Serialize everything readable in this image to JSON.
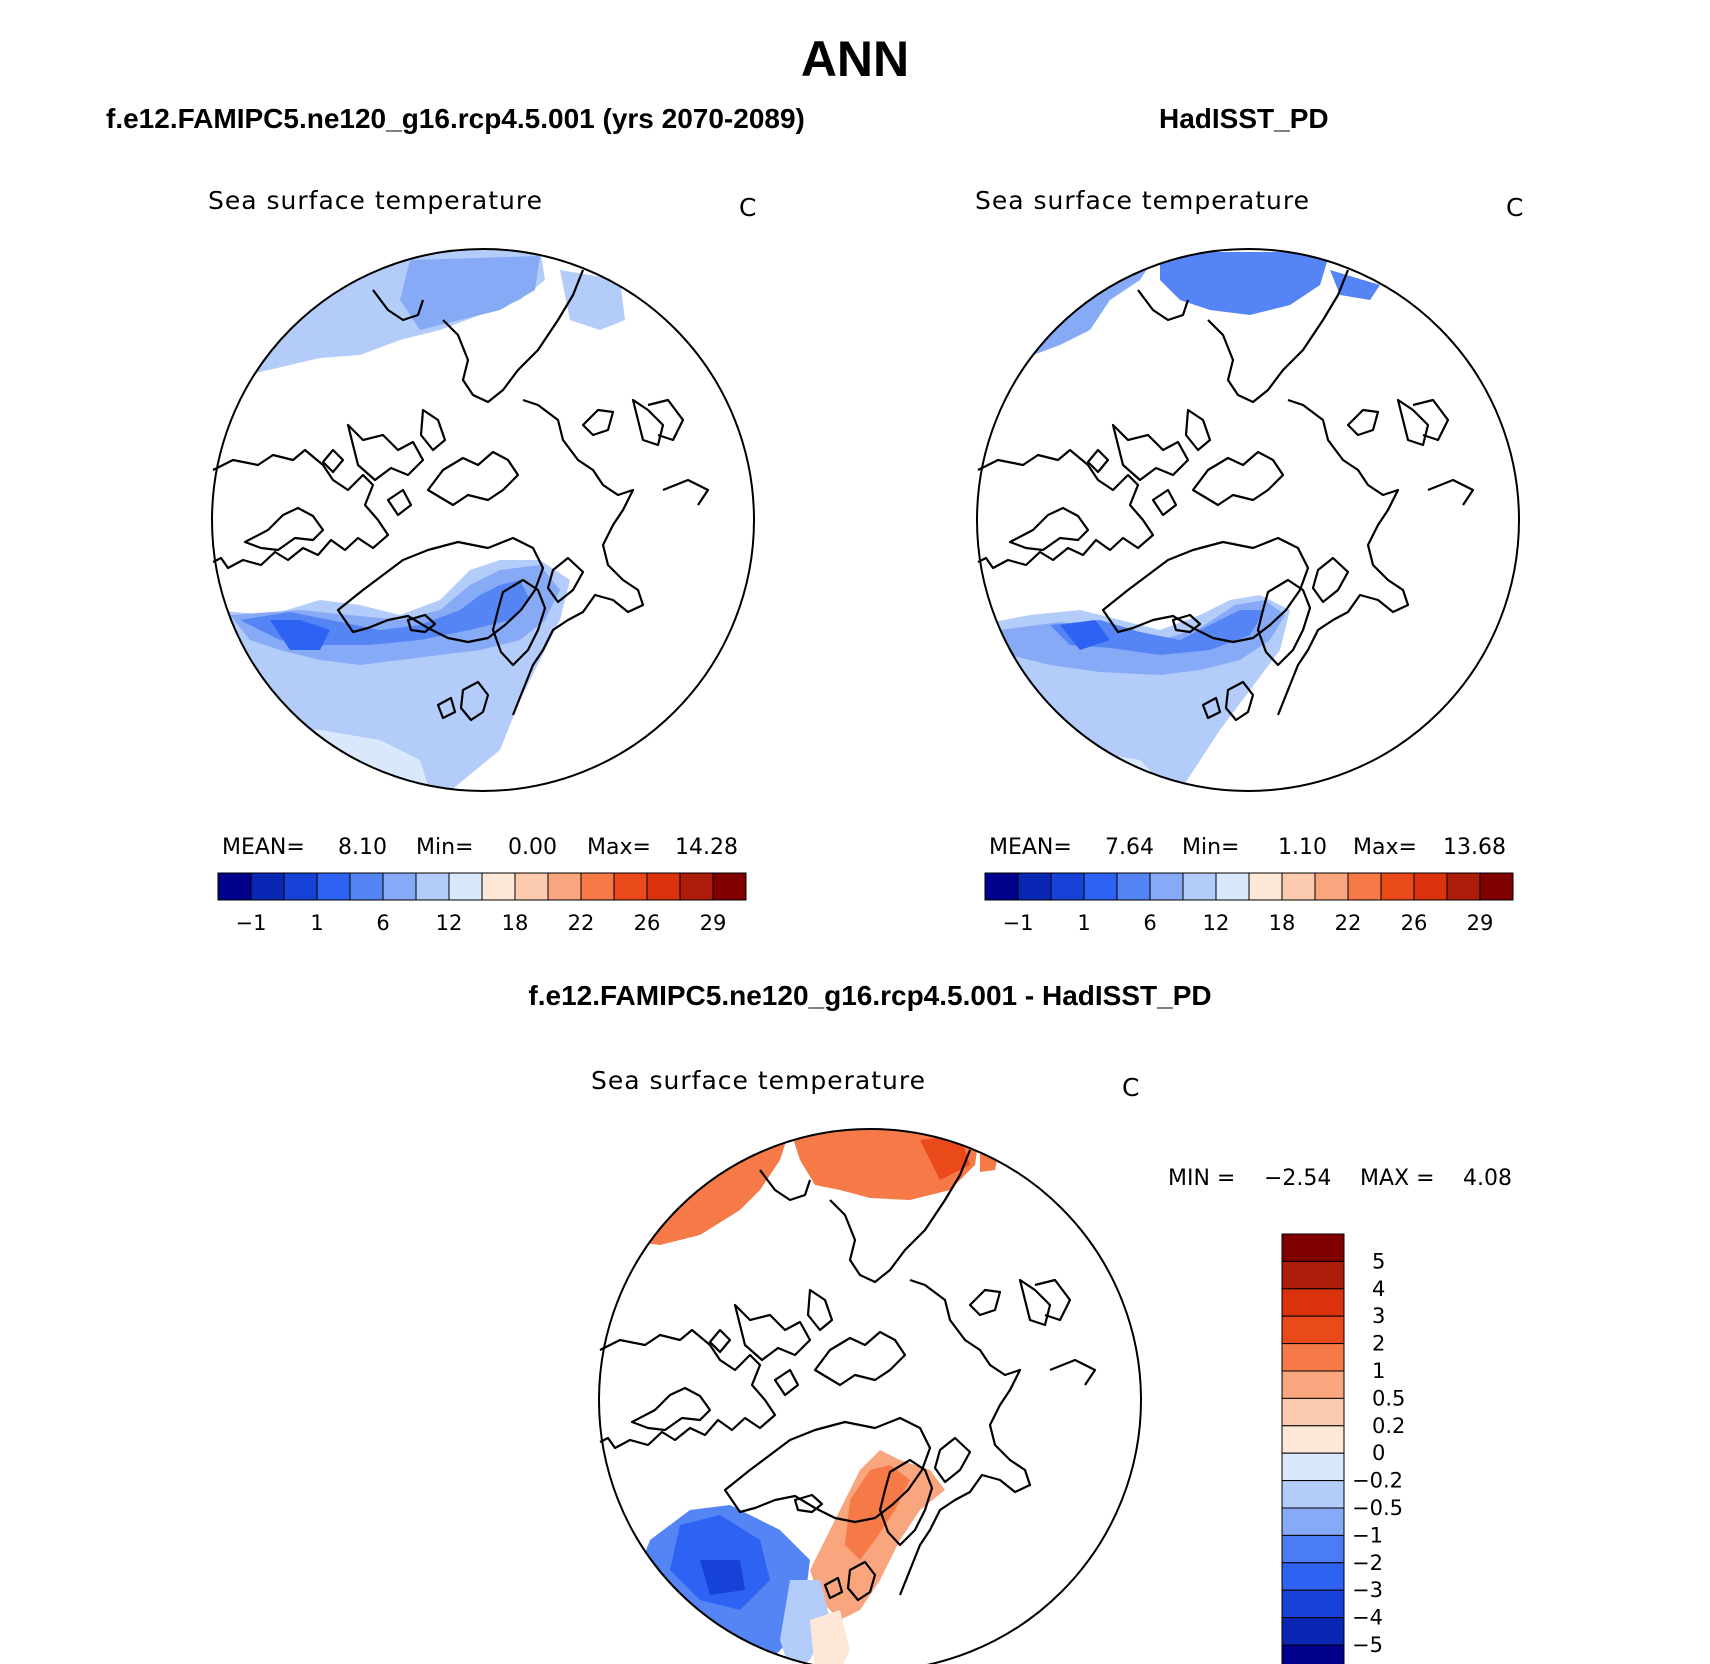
{
  "title": "ANN",
  "panels": [
    {
      "case": "f.e12.FAMIPC5.ne120_g16.rcp4.5.001 (yrs 2070-2089)",
      "label": "Sea surface temperature",
      "units": "C",
      "stats": {
        "mean_label": "MEAN=",
        "mean": "8.10",
        "min_label": "Min=",
        "min": "0.00",
        "max_label": "Max=",
        "max": "14.28"
      }
    },
    {
      "case": "HadISST_PD",
      "label": "Sea surface temperature",
      "units": "C",
      "stats": {
        "mean_label": "MEAN=",
        "mean": "7.64",
        "min_label": "Min=",
        "min": "1.10",
        "max_label": "Max=",
        "max": "13.68"
      }
    }
  ],
  "diff": {
    "title": "f.e12.FAMIPC5.ne120_g16.rcp4.5.001 - HadISST_PD",
    "label": "Sea surface temperature",
    "units": "C",
    "min_label": "MIN =",
    "min": "−2.54",
    "max_label": "MAX =",
    "max": "4.08"
  },
  "colorbar": {
    "colors": [
      "#00008b",
      "#0a27b4",
      "#1642d8",
      "#2e62f2",
      "#5584f4",
      "#87aaf6",
      "#b3ccf9",
      "#d9e9fb",
      "#fde8d8",
      "#fccbaf",
      "#f9a57e",
      "#f57a48",
      "#ea4a1a",
      "#d9320c",
      "#ad1d09",
      "#800000"
    ],
    "ticks": [
      "−1",
      "1",
      "6",
      "12",
      "18",
      "22",
      "26",
      "29"
    ]
  },
  "diff_colorbar": {
    "colors": [
      "#00008b",
      "#0a27b4",
      "#1642d8",
      "#2e62f2",
      "#4a7cf3",
      "#87aaf6",
      "#b3ccf9",
      "#d9e9fb",
      "#fde8d8",
      "#fccbaf",
      "#f9a57e",
      "#f57a48",
      "#ea4a1a",
      "#d9320c",
      "#ad1d09",
      "#800000"
    ],
    "ticks": [
      "5",
      "4",
      "3",
      "2",
      "1",
      "0.5",
      "0.2",
      "0",
      "−0.2",
      "−0.5",
      "−1",
      "−2",
      "−3",
      "−4",
      "−5"
    ]
  }
}
